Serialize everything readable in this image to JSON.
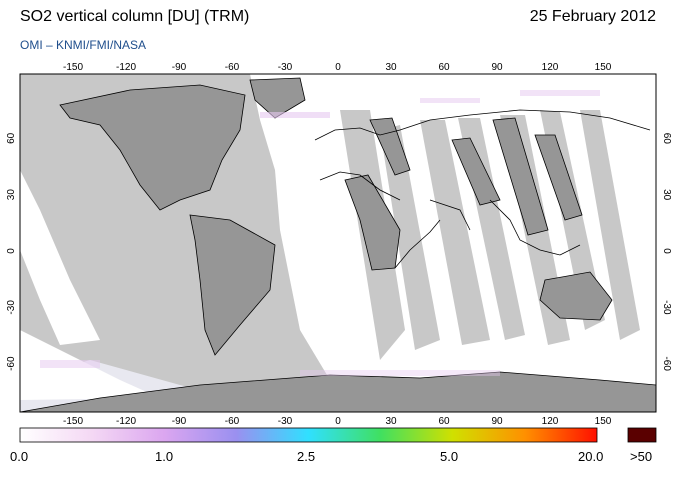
{
  "header": {
    "title": "SO2 vertical column [DU] (TRM)",
    "date": "25 February 2012",
    "subtitle": "OMI  –  KNMI/FMI/NASA"
  },
  "map": {
    "lon_ticks": [
      "-150",
      "-120",
      "-90",
      "-60",
      "-30",
      "0",
      "30",
      "60",
      "90",
      "120",
      "150"
    ],
    "lat_ticks": [
      "60",
      "30",
      "0",
      "-30",
      "-60"
    ],
    "colors": {
      "nodata": "#c8c8c8",
      "land": "#969696",
      "coverage": "#ffffff",
      "coast": "#000000"
    }
  },
  "colorbar": {
    "labels": [
      "0.0",
      "1.0",
      "2.5",
      "5.0",
      "20.0"
    ],
    "overflow_label": ">50",
    "overflow_color": "#5a0000",
    "stops": [
      "#ffffff",
      "#f4d8f4",
      "#dba6f0",
      "#9a90f0",
      "#30e0ff",
      "#40e060",
      "#d0e000",
      "#ff9000",
      "#ff1000"
    ]
  }
}
